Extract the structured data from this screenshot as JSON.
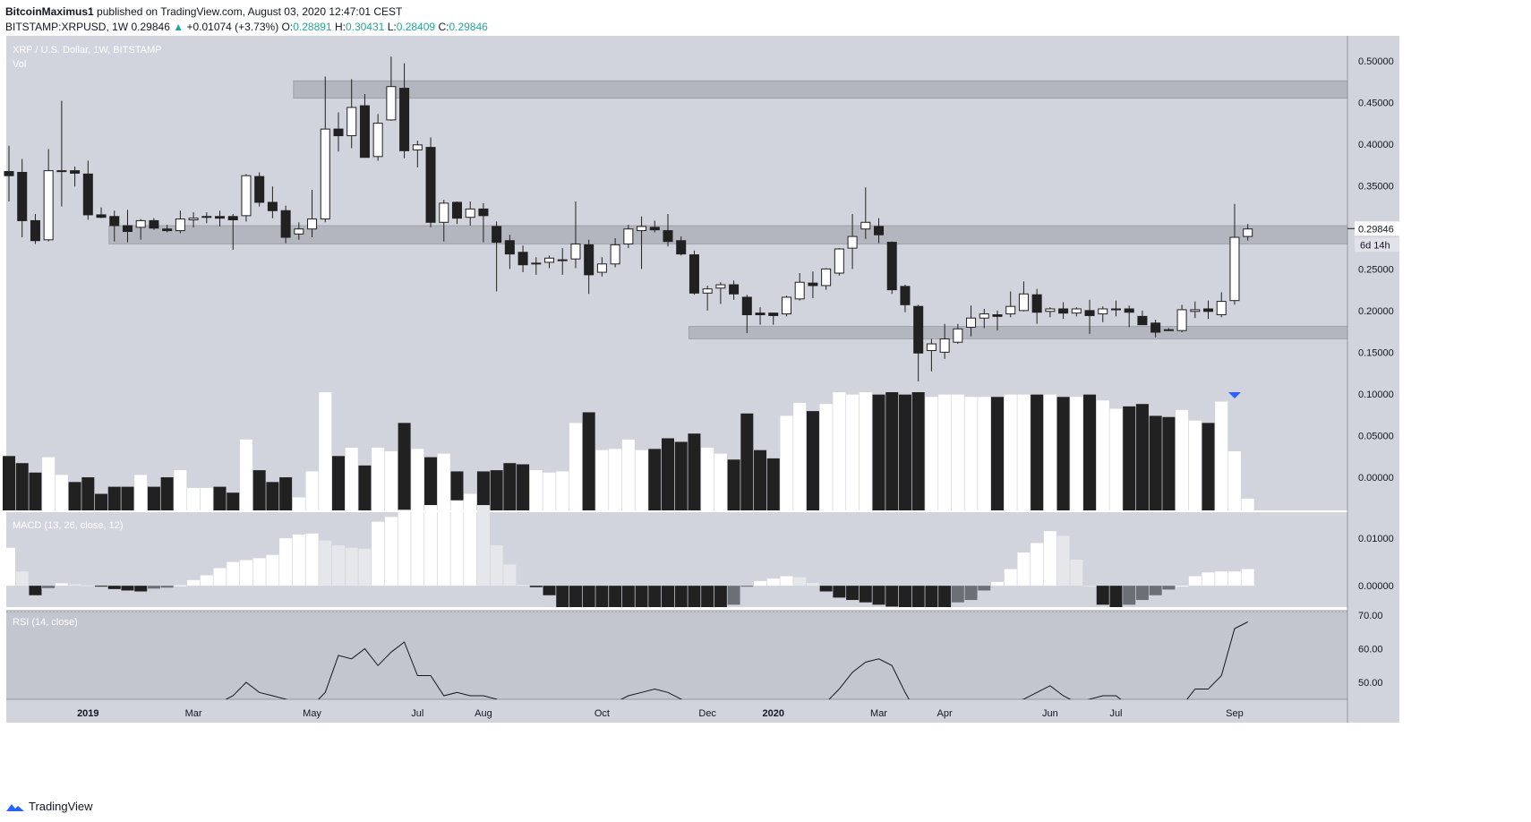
{
  "header": {
    "author": "BitcoinMaximus1",
    "published": "published on TradingView.com, August 03, 2020 12:47:01 CEST",
    "symbol": "BITSTAMP:XRPUSD, 1W",
    "last": "0.29846",
    "change": "+0.01074 (+3.73%)",
    "o_label": "O:",
    "o": "0.28891",
    "h_label": "H:",
    "h": "0.30431",
    "l_label": "L:",
    "l": "0.28409",
    "c_label": "C:",
    "c": "0.29846"
  },
  "brand": "TradingView",
  "colors": {
    "bg": "#d1d4dc",
    "up": "#ffffff",
    "down": "#212121",
    "zone": "#a9acb5",
    "arrow": "#2962ff"
  },
  "chart_data": {
    "type": "candlestick",
    "title": "XRP / U.S. Dollar, 1W, BITSTAMP",
    "volume_label": "Vol",
    "x_ticks": [
      "2019",
      "Mar",
      "May",
      "Jul",
      "Aug",
      "Oct",
      "Dec",
      "2020",
      "Mar",
      "Apr",
      "Jun",
      "Jul",
      "Sep"
    ],
    "x_tick_candle_index": [
      6,
      14,
      23,
      31,
      36,
      45,
      53,
      58,
      66,
      71,
      79,
      84,
      93
    ],
    "y_ticks": [
      "0.50000",
      "0.45000",
      "0.40000",
      "0.35000",
      "0.30000",
      "0.25000",
      "0.20000",
      "0.15000",
      "0.10000",
      "0.05000",
      "0.00000"
    ],
    "ylim": [
      -0.04,
      0.53
    ],
    "last_price_label": "0.29846",
    "countdown_label": "6d 14h",
    "zones": [
      {
        "from": 0.455,
        "to": 0.476,
        "start_index": 22
      },
      {
        "from": 0.28,
        "to": 0.302,
        "start_index": 8
      },
      {
        "from": 0.166,
        "to": 0.181,
        "start_index": 52
      }
    ],
    "candles": [
      {
        "o": 0.367,
        "h": 0.398,
        "l": 0.331,
        "c": 0.362
      },
      {
        "o": 0.366,
        "h": 0.382,
        "l": 0.288,
        "c": 0.308
      },
      {
        "o": 0.308,
        "h": 0.316,
        "l": 0.28,
        "c": 0.284
      },
      {
        "o": 0.285,
        "h": 0.394,
        "l": 0.283,
        "c": 0.368
      },
      {
        "o": 0.368,
        "h": 0.452,
        "l": 0.325,
        "c": 0.368
      },
      {
        "o": 0.368,
        "h": 0.373,
        "l": 0.349,
        "c": 0.365
      },
      {
        "o": 0.364,
        "h": 0.38,
        "l": 0.309,
        "c": 0.315
      },
      {
        "o": 0.315,
        "h": 0.324,
        "l": 0.311,
        "c": 0.312
      },
      {
        "o": 0.313,
        "h": 0.32,
        "l": 0.283,
        "c": 0.302
      },
      {
        "o": 0.302,
        "h": 0.321,
        "l": 0.282,
        "c": 0.295
      },
      {
        "o": 0.3,
        "h": 0.31,
        "l": 0.285,
        "c": 0.308
      },
      {
        "o": 0.308,
        "h": 0.311,
        "l": 0.297,
        "c": 0.299
      },
      {
        "o": 0.298,
        "h": 0.303,
        "l": 0.294,
        "c": 0.296
      },
      {
        "o": 0.296,
        "h": 0.32,
        "l": 0.293,
        "c": 0.31
      },
      {
        "o": 0.309,
        "h": 0.318,
        "l": 0.3,
        "c": 0.311
      },
      {
        "o": 0.312,
        "h": 0.318,
        "l": 0.305,
        "c": 0.313
      },
      {
        "o": 0.313,
        "h": 0.32,
        "l": 0.301,
        "c": 0.311
      },
      {
        "o": 0.313,
        "h": 0.316,
        "l": 0.273,
        "c": 0.309
      },
      {
        "o": 0.314,
        "h": 0.364,
        "l": 0.307,
        "c": 0.362
      },
      {
        "o": 0.361,
        "h": 0.366,
        "l": 0.325,
        "c": 0.33
      },
      {
        "o": 0.33,
        "h": 0.349,
        "l": 0.311,
        "c": 0.32
      },
      {
        "o": 0.32,
        "h": 0.326,
        "l": 0.281,
        "c": 0.288
      },
      {
        "o": 0.292,
        "h": 0.306,
        "l": 0.285,
        "c": 0.298
      },
      {
        "o": 0.298,
        "h": 0.345,
        "l": 0.288,
        "c": 0.31
      },
      {
        "o": 0.31,
        "h": 0.481,
        "l": 0.306,
        "c": 0.418
      },
      {
        "o": 0.418,
        "h": 0.438,
        "l": 0.391,
        "c": 0.41
      },
      {
        "o": 0.41,
        "h": 0.478,
        "l": 0.395,
        "c": 0.444
      },
      {
        "o": 0.446,
        "h": 0.46,
        "l": 0.388,
        "c": 0.384
      },
      {
        "o": 0.385,
        "h": 0.436,
        "l": 0.38,
        "c": 0.425
      },
      {
        "o": 0.429,
        "h": 0.505,
        "l": 0.428,
        "c": 0.469
      },
      {
        "o": 0.467,
        "h": 0.497,
        "l": 0.383,
        "c": 0.392
      },
      {
        "o": 0.393,
        "h": 0.404,
        "l": 0.372,
        "c": 0.399
      },
      {
        "o": 0.396,
        "h": 0.408,
        "l": 0.3,
        "c": 0.306
      },
      {
        "o": 0.306,
        "h": 0.333,
        "l": 0.283,
        "c": 0.329
      },
      {
        "o": 0.33,
        "h": 0.331,
        "l": 0.304,
        "c": 0.311
      },
      {
        "o": 0.312,
        "h": 0.331,
        "l": 0.302,
        "c": 0.322
      },
      {
        "o": 0.322,
        "h": 0.329,
        "l": 0.282,
        "c": 0.314
      },
      {
        "o": 0.301,
        "h": 0.307,
        "l": 0.223,
        "c": 0.282
      },
      {
        "o": 0.284,
        "h": 0.291,
        "l": 0.25,
        "c": 0.268
      },
      {
        "o": 0.27,
        "h": 0.278,
        "l": 0.246,
        "c": 0.255
      },
      {
        "o": 0.256,
        "h": 0.264,
        "l": 0.243,
        "c": 0.257
      },
      {
        "o": 0.258,
        "h": 0.266,
        "l": 0.251,
        "c": 0.263
      },
      {
        "o": 0.26,
        "h": 0.275,
        "l": 0.243,
        "c": 0.261
      },
      {
        "o": 0.262,
        "h": 0.331,
        "l": 0.251,
        "c": 0.28
      },
      {
        "o": 0.279,
        "h": 0.285,
        "l": 0.22,
        "c": 0.243
      },
      {
        "o": 0.246,
        "h": 0.264,
        "l": 0.241,
        "c": 0.256
      },
      {
        "o": 0.256,
        "h": 0.287,
        "l": 0.252,
        "c": 0.279
      },
      {
        "o": 0.28,
        "h": 0.303,
        "l": 0.275,
        "c": 0.298
      },
      {
        "o": 0.296,
        "h": 0.313,
        "l": 0.25,
        "c": 0.301
      },
      {
        "o": 0.3,
        "h": 0.308,
        "l": 0.294,
        "c": 0.297
      },
      {
        "o": 0.296,
        "h": 0.316,
        "l": 0.277,
        "c": 0.283
      },
      {
        "o": 0.284,
        "h": 0.289,
        "l": 0.266,
        "c": 0.268
      },
      {
        "o": 0.267,
        "h": 0.272,
        "l": 0.219,
        "c": 0.221
      },
      {
        "o": 0.221,
        "h": 0.23,
        "l": 0.2,
        "c": 0.226
      },
      {
        "o": 0.227,
        "h": 0.234,
        "l": 0.208,
        "c": 0.231
      },
      {
        "o": 0.231,
        "h": 0.236,
        "l": 0.213,
        "c": 0.22
      },
      {
        "o": 0.216,
        "h": 0.219,
        "l": 0.173,
        "c": 0.195
      },
      {
        "o": 0.197,
        "h": 0.204,
        "l": 0.183,
        "c": 0.195
      },
      {
        "o": 0.197,
        "h": 0.197,
        "l": 0.183,
        "c": 0.194
      },
      {
        "o": 0.196,
        "h": 0.218,
        "l": 0.193,
        "c": 0.216
      },
      {
        "o": 0.214,
        "h": 0.245,
        "l": 0.212,
        "c": 0.234
      },
      {
        "o": 0.233,
        "h": 0.247,
        "l": 0.215,
        "c": 0.23
      },
      {
        "o": 0.23,
        "h": 0.251,
        "l": 0.225,
        "c": 0.25
      },
      {
        "o": 0.245,
        "h": 0.275,
        "l": 0.242,
        "c": 0.274
      },
      {
        "o": 0.275,
        "h": 0.316,
        "l": 0.25,
        "c": 0.289
      },
      {
        "o": 0.298,
        "h": 0.348,
        "l": 0.286,
        "c": 0.306
      },
      {
        "o": 0.301,
        "h": 0.311,
        "l": 0.281,
        "c": 0.291
      },
      {
        "o": 0.282,
        "h": 0.283,
        "l": 0.22,
        "c": 0.225
      },
      {
        "o": 0.229,
        "h": 0.231,
        "l": 0.198,
        "c": 0.207
      },
      {
        "o": 0.205,
        "h": 0.207,
        "l": 0.115,
        "c": 0.149
      },
      {
        "o": 0.152,
        "h": 0.166,
        "l": 0.127,
        "c": 0.16
      },
      {
        "o": 0.15,
        "h": 0.184,
        "l": 0.142,
        "c": 0.166
      },
      {
        "o": 0.162,
        "h": 0.184,
        "l": 0.16,
        "c": 0.178
      },
      {
        "o": 0.18,
        "h": 0.206,
        "l": 0.169,
        "c": 0.191
      },
      {
        "o": 0.191,
        "h": 0.202,
        "l": 0.179,
        "c": 0.196
      },
      {
        "o": 0.195,
        "h": 0.2,
        "l": 0.176,
        "c": 0.193
      },
      {
        "o": 0.196,
        "h": 0.223,
        "l": 0.192,
        "c": 0.205
      },
      {
        "o": 0.2,
        "h": 0.235,
        "l": 0.199,
        "c": 0.22
      },
      {
        "o": 0.219,
        "h": 0.226,
        "l": 0.184,
        "c": 0.198
      },
      {
        "o": 0.199,
        "h": 0.204,
        "l": 0.192,
        "c": 0.202
      },
      {
        "o": 0.202,
        "h": 0.21,
        "l": 0.19,
        "c": 0.197
      },
      {
        "o": 0.197,
        "h": 0.204,
        "l": 0.193,
        "c": 0.202
      },
      {
        "o": 0.2,
        "h": 0.213,
        "l": 0.172,
        "c": 0.194
      },
      {
        "o": 0.196,
        "h": 0.205,
        "l": 0.186,
        "c": 0.202
      },
      {
        "o": 0.201,
        "h": 0.212,
        "l": 0.193,
        "c": 0.202
      },
      {
        "o": 0.202,
        "h": 0.206,
        "l": 0.18,
        "c": 0.198
      },
      {
        "o": 0.193,
        "h": 0.2,
        "l": 0.184,
        "c": 0.183
      },
      {
        "o": 0.185,
        "h": 0.189,
        "l": 0.168,
        "c": 0.174
      },
      {
        "o": 0.177,
        "h": 0.179,
        "l": 0.176,
        "c": 0.176
      },
      {
        "o": 0.176,
        "h": 0.207,
        "l": 0.174,
        "c": 0.201
      },
      {
        "o": 0.199,
        "h": 0.211,
        "l": 0.191,
        "c": 0.201
      },
      {
        "o": 0.202,
        "h": 0.212,
        "l": 0.19,
        "c": 0.199
      },
      {
        "o": 0.195,
        "h": 0.222,
        "l": 0.192,
        "c": 0.211
      },
      {
        "o": 0.212,
        "h": 0.328,
        "l": 0.207,
        "c": 0.288
      },
      {
        "o": 0.289,
        "h": 0.304,
        "l": 0.284,
        "c": 0.298
      }
    ],
    "volume": [
      0.46,
      0.4,
      0.32,
      0.45,
      0.3,
      0.24,
      0.28,
      0.14,
      0.2,
      0.2,
      0.3,
      0.2,
      0.28,
      0.34,
      0.19,
      0.19,
      0.2,
      0.15,
      0.6,
      0.34,
      0.24,
      0.28,
      0.11,
      0.33,
      1.0,
      0.46,
      0.53,
      0.38,
      0.53,
      0.5,
      0.74,
      0.52,
      0.45,
      0.48,
      0.33,
      0.14,
      0.33,
      0.34,
      0.4,
      0.39,
      0.34,
      0.32,
      0.33,
      0.74,
      0.83,
      0.51,
      0.52,
      0.6,
      0.51,
      0.52,
      0.61,
      0.58,
      0.65,
      0.53,
      0.48,
      0.43,
      0.82,
      0.51,
      0.44,
      0.8,
      0.91,
      0.84,
      0.9,
      1.0,
      0.98,
      1.0,
      0.98,
      1.0,
      0.98,
      1.0,
      0.96,
      0.98,
      0.98,
      0.96,
      0.96,
      0.96,
      0.98,
      0.98,
      0.98,
      0.98,
      0.96,
      0.96,
      0.98,
      0.93,
      0.86,
      0.88,
      0.9,
      0.8,
      0.79,
      0.85,
      0.76,
      0.74,
      0.92,
      0.5,
      0.1
    ],
    "macd_label": "MACD (13, 26, close, 12)",
    "macd_y_ticks": [
      "0.01000",
      "0.00000"
    ],
    "macd_ylim": [
      -0.0045,
      0.0155
    ],
    "macd_hist": [
      0.008,
      0.003,
      -0.002,
      -0.0005,
      0.0005,
      0.0003,
      0.0001,
      -0.0001,
      -0.0007,
      -0.001,
      -0.0012,
      -0.0006,
      -0.0004,
      0.0001,
      0.0012,
      0.0022,
      0.0037,
      0.005,
      0.0054,
      0.0058,
      0.0065,
      0.01,
      0.0108,
      0.011,
      0.0095,
      0.0085,
      0.008,
      0.0078,
      0.0135,
      0.0145,
      0.016,
      0.016,
      0.017,
      0.017,
      0.018,
      0.018,
      0.017,
      0.0085,
      0.0045,
      0.0002,
      -0.0003,
      -0.002,
      -0.0045,
      -0.0045,
      -0.0045,
      -0.0045,
      -0.0045,
      -0.0045,
      -0.0045,
      -0.0045,
      -0.0045,
      -0.0045,
      -0.0045,
      -0.0045,
      -0.0045,
      -0.004,
      -0.0002,
      0.001,
      0.0015,
      0.002,
      0.0018,
      0.0006,
      -0.0012,
      -0.0025,
      -0.003,
      -0.0035,
      -0.004,
      -0.0044,
      -0.0045,
      -0.0045,
      -0.0045,
      -0.0045,
      -0.0035,
      -0.003,
      -0.001,
      0.0008,
      0.0035,
      0.007,
      0.009,
      0.0115,
      0.0105,
      0.0055,
      0.0,
      -0.004,
      -0.0045,
      -0.004,
      -0.003,
      -0.002,
      -0.0008,
      0.0,
      0.002,
      0.0028,
      0.003,
      0.003,
      0.0035
    ],
    "rsi_label": "RSI (14, close)",
    "rsi_y_ticks": [
      "70.00",
      "60.00",
      "50.00"
    ],
    "rsi_ylim": [
      45,
      70
    ],
    "rsi": [
      44,
      44,
      44,
      44,
      44,
      44,
      44,
      43,
      42,
      41,
      40,
      39,
      40,
      40,
      41,
      42,
      44,
      46,
      50,
      47,
      46,
      45,
      44,
      43,
      47,
      58,
      57,
      60,
      55,
      59,
      62,
      52,
      52,
      46,
      47,
      46,
      46,
      45,
      43,
      42,
      41,
      40,
      40,
      43,
      43,
      43,
      44,
      46,
      47,
      48,
      47,
      45,
      43,
      42,
      41,
      40,
      39,
      40,
      41,
      42,
      43,
      43,
      44,
      48,
      53,
      56,
      57,
      55,
      47,
      40,
      38,
      39,
      40,
      41,
      42,
      43,
      44,
      45,
      47,
      49,
      46,
      44,
      45,
      46,
      46,
      43,
      42,
      41,
      42,
      43,
      48,
      48,
      52,
      66,
      68
    ]
  }
}
